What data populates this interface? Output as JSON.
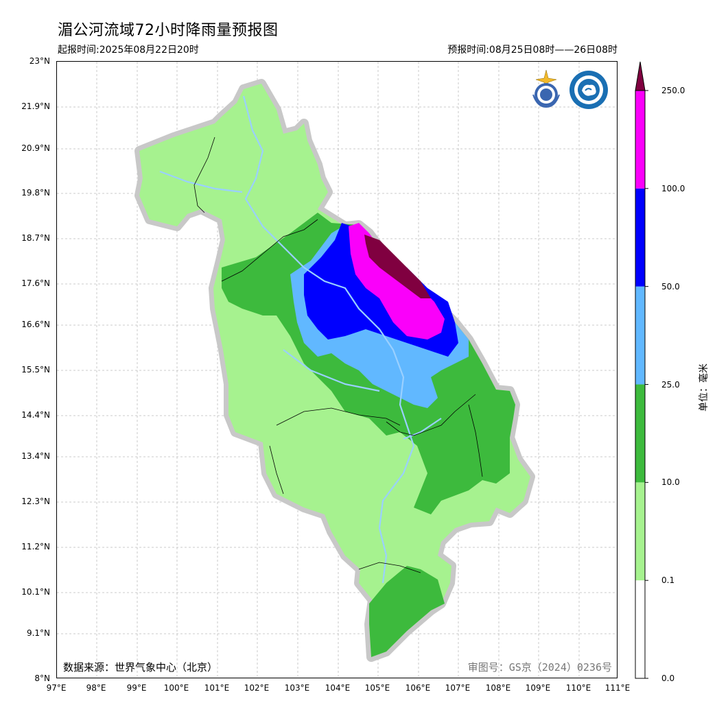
{
  "header": {
    "title": "湄公河流域72小时降雨量预报图",
    "issue_time": "起报时间:2025年08月22日20时",
    "forecast_time": "预报时间:08月25日08时——26日08时"
  },
  "map": {
    "y_axis_labels": [
      "23°N",
      "21.9°N",
      "20.9°N",
      "19.8°N",
      "18.7°N",
      "17.6°N",
      "16.6°N",
      "15.5°N",
      "14.4°N",
      "13.4°N",
      "12.3°N",
      "11.2°N",
      "10.1°N",
      "9.1°N",
      "8°N"
    ],
    "x_axis_labels": [
      "97°E",
      "98°E",
      "99°E",
      "100°E",
      "101°E",
      "102°E",
      "103°E",
      "104°E",
      "105°E",
      "106°E",
      "107°E",
      "108°E",
      "109°E",
      "110°E",
      "111°E"
    ],
    "source_note": "数据来源：世界气象中心（北京）",
    "approval_note": "审图号：GS京（2024）0236号",
    "logos": [
      "wmo-logo",
      "cma-logo"
    ]
  },
  "legend": {
    "unit": "单位：毫米",
    "levels": [
      "0.0",
      "0.1",
      "10.0",
      "25.0",
      "50.0",
      "100.0",
      "250.0"
    ],
    "colors": [
      "#ffffff",
      "#a6f28f",
      "#3dba3d",
      "#61b8ff",
      "#0000fe",
      "#fa00fa",
      "#800040"
    ]
  }
}
